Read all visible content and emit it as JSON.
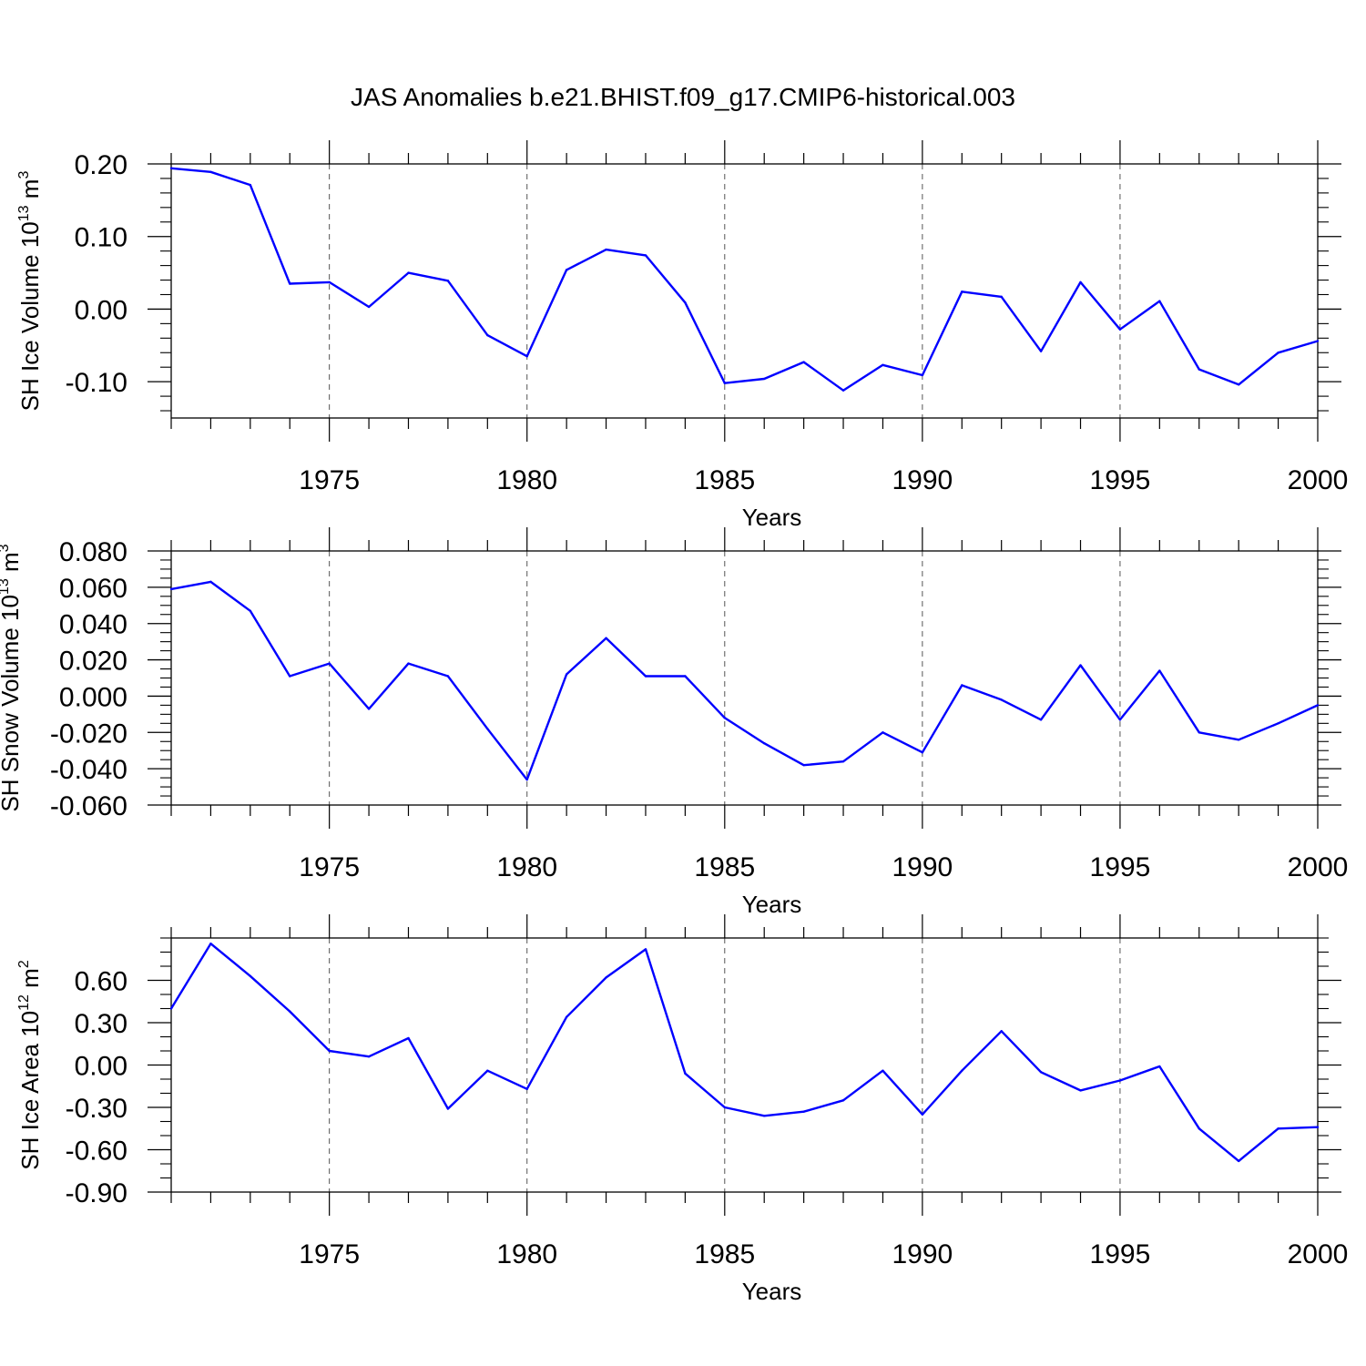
{
  "title": "JAS Anomalies b.e21.BHIST.f09_g17.CMIP6-historical.003",
  "line_color": "#0000ff",
  "chart_data": [
    {
      "type": "line",
      "ylabel": {
        "base": "SH Ice Volume 10",
        "sup1": "13",
        "unit": " m",
        "sup2": "3"
      },
      "xlabel": "Years",
      "xlim": [
        1971,
        2000
      ],
      "ylim": [
        -0.15,
        0.2
      ],
      "x_ticks": [
        1975,
        1980,
        1985,
        1990,
        1995,
        2000
      ],
      "x_tick_labels": [
        "1975",
        "1980",
        "1985",
        "1990",
        "1995",
        "2000"
      ],
      "y_ticks": [
        0.2,
        0.1,
        0.0,
        -0.1
      ],
      "y_tick_labels": [
        "0.20",
        "0.10",
        "0.00",
        "-0.10"
      ],
      "y_minor_step": 0.02,
      "x": [
        1971,
        1972,
        1973,
        1974,
        1975,
        1976,
        1977,
        1978,
        1979,
        1980,
        1981,
        1982,
        1983,
        1984,
        1985,
        1986,
        1987,
        1988,
        1989,
        1990,
        1991,
        1992,
        1993,
        1994,
        1995,
        1996,
        1997,
        1998,
        1999,
        2000
      ],
      "values": [
        0.194,
        0.189,
        0.171,
        0.035,
        0.037,
        0.003,
        0.05,
        0.039,
        -0.036,
        -0.065,
        0.054,
        0.082,
        0.074,
        0.009,
        -0.102,
        -0.096,
        -0.073,
        -0.112,
        -0.077,
        -0.091,
        0.024,
        0.017,
        -0.058,
        0.037,
        -0.028,
        0.011,
        -0.083,
        -0.104,
        -0.06,
        -0.044
      ]
    },
    {
      "type": "line",
      "ylabel": {
        "base": "SH Snow Volume 10",
        "sup1": "13",
        "unit": " m",
        "sup2": "3"
      },
      "xlabel": "Years",
      "xlim": [
        1971,
        2000
      ],
      "ylim": [
        -0.06,
        0.08
      ],
      "x_ticks": [
        1975,
        1980,
        1985,
        1990,
        1995,
        2000
      ],
      "x_tick_labels": [
        "1975",
        "1980",
        "1985",
        "1990",
        "1995",
        "2000"
      ],
      "y_ticks": [
        0.08,
        0.06,
        0.04,
        0.02,
        0.0,
        -0.02,
        -0.04,
        -0.06
      ],
      "y_tick_labels": [
        "0.080",
        "0.060",
        "0.040",
        "0.020",
        "0.000",
        "-0.020",
        "-0.040",
        "-0.060"
      ],
      "y_minor_step": 0.005,
      "x": [
        1971,
        1972,
        1973,
        1974,
        1975,
        1976,
        1977,
        1978,
        1979,
        1980,
        1981,
        1982,
        1983,
        1984,
        1985,
        1986,
        1987,
        1988,
        1989,
        1990,
        1991,
        1992,
        1993,
        1994,
        1995,
        1996,
        1997,
        1998,
        1999,
        2000
      ],
      "values": [
        0.059,
        0.063,
        0.047,
        0.011,
        0.018,
        -0.007,
        0.018,
        0.011,
        -0.018,
        -0.046,
        0.012,
        0.032,
        0.011,
        0.011,
        -0.012,
        -0.026,
        -0.038,
        -0.036,
        -0.02,
        -0.031,
        0.006,
        -0.002,
        -0.013,
        0.017,
        -0.013,
        0.014,
        -0.02,
        -0.024,
        -0.015,
        -0.005
      ]
    },
    {
      "type": "line",
      "ylabel": {
        "base": "SH Ice Area 10",
        "sup1": "12",
        "unit": " m",
        "sup2": "2"
      },
      "xlabel": "Years",
      "xlim": [
        1971,
        2000
      ],
      "ylim": [
        -0.9,
        0.9
      ],
      "x_ticks": [
        1975,
        1980,
        1985,
        1990,
        1995,
        2000
      ],
      "x_tick_labels": [
        "1975",
        "1980",
        "1985",
        "1990",
        "1995",
        "2000"
      ],
      "y_ticks": [
        0.6,
        0.3,
        0.0,
        -0.3,
        -0.6,
        -0.9
      ],
      "y_tick_labels": [
        "0.60",
        "0.30",
        "0.00",
        "-0.30",
        "-0.60",
        "-0.90"
      ],
      "y_minor_step": 0.1,
      "x": [
        1971,
        1972,
        1973,
        1974,
        1975,
        1976,
        1977,
        1978,
        1979,
        1980,
        1981,
        1982,
        1983,
        1984,
        1985,
        1986,
        1987,
        1988,
        1989,
        1990,
        1991,
        1992,
        1993,
        1994,
        1995,
        1996,
        1997,
        1998,
        1999,
        2000
      ],
      "values": [
        0.4,
        0.86,
        0.63,
        0.38,
        0.1,
        0.06,
        0.19,
        -0.31,
        -0.04,
        -0.17,
        0.34,
        0.62,
        0.82,
        -0.06,
        -0.3,
        -0.36,
        -0.33,
        -0.25,
        -0.04,
        -0.35,
        -0.04,
        0.24,
        -0.05,
        -0.18,
        -0.11,
        -0.01,
        -0.45,
        -0.68,
        -0.45,
        -0.44
      ]
    }
  ]
}
